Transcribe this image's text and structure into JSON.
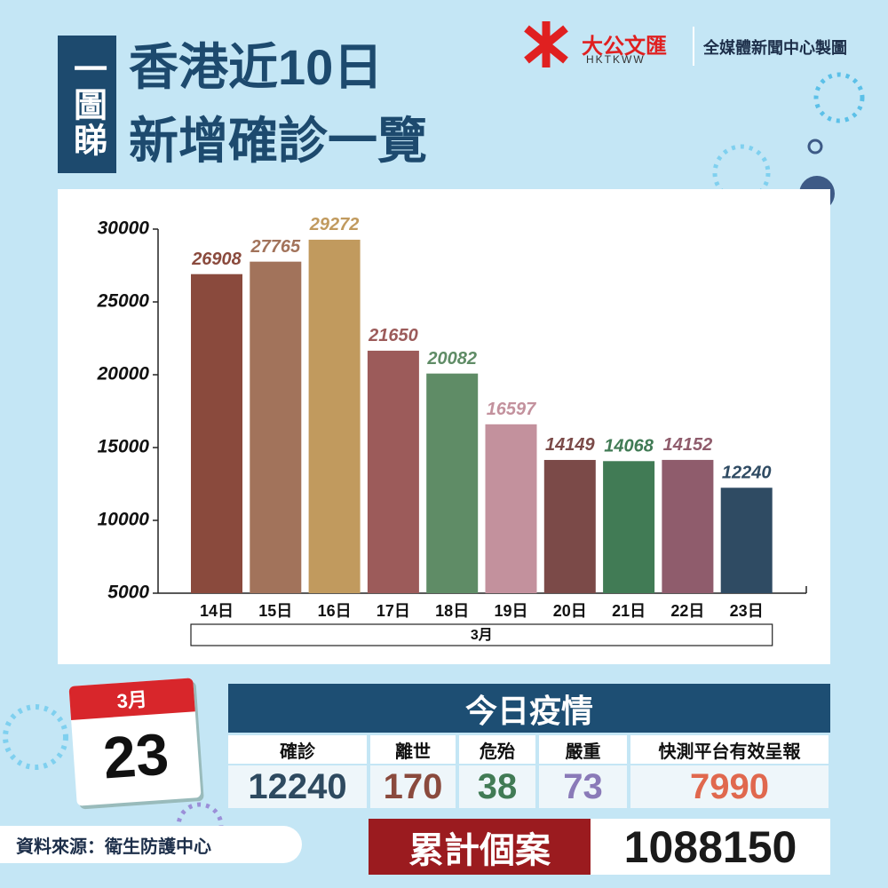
{
  "header": {
    "tag": "一圖睇",
    "title_line1": "香港近10日",
    "title_line2": "新增確診一覽",
    "logo_name": "大公文匯",
    "logo_sub": "HKTKWW",
    "credit": "全媒體新聞中心製圖"
  },
  "chart_data": {
    "type": "bar",
    "categories": [
      "14日",
      "15日",
      "16日",
      "17日",
      "18日",
      "19日",
      "20日",
      "21日",
      "22日",
      "23日"
    ],
    "x_group_label": "3月",
    "values": [
      26908,
      27765,
      29272,
      21650,
      20082,
      16597,
      14149,
      14068,
      14152,
      12240
    ],
    "colors": [
      "#8a4a3d",
      "#a2735b",
      "#c19a5e",
      "#9c5b5a",
      "#5f8c66",
      "#c3919d",
      "#7b4a48",
      "#417b55",
      "#8f5c6c",
      "#2f4b63"
    ],
    "ylim": [
      5000,
      30000
    ],
    "yticks": [
      5000,
      10000,
      15000,
      20000,
      25000,
      30000
    ]
  },
  "calendar": {
    "month": "3月",
    "day": "23"
  },
  "today": {
    "title": "今日疫情",
    "headers": [
      "確診",
      "離世",
      "危殆",
      "嚴重",
      "快測平台有效呈報"
    ],
    "values": [
      12240,
      170,
      38,
      73,
      7990
    ]
  },
  "source": "資料來源：衛生防護中心",
  "cumulative": {
    "label": "累計個案",
    "value": 1088150
  }
}
